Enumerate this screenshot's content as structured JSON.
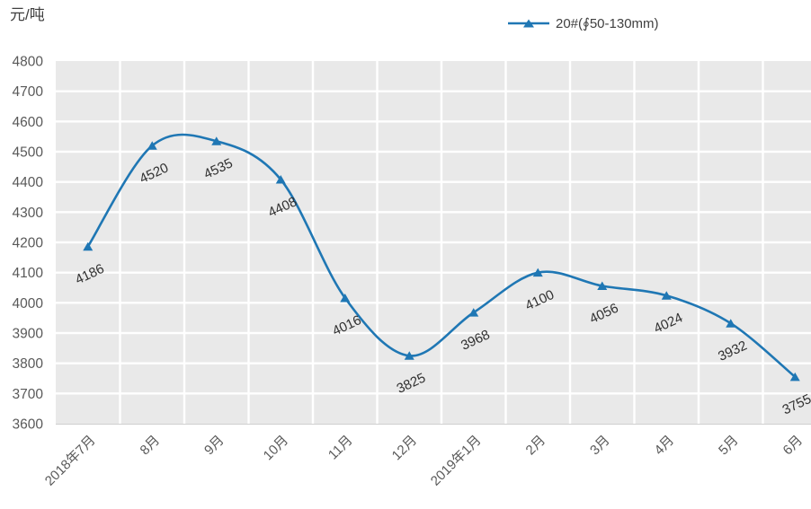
{
  "chart_data": {
    "type": "line",
    "unit_label": "元/吨",
    "categories": [
      "2018年7月",
      "8月",
      "9月",
      "10月",
      "11月",
      "12月",
      "2019年1月",
      "2月",
      "3月",
      "4月",
      "5月",
      "6月"
    ],
    "series": [
      {
        "name": "20#(∮50-130mm)",
        "values": [
          4186,
          4520,
          4535,
          4408,
          4016,
          3825,
          3968,
          4100,
          4056,
          4024,
          3932,
          3755
        ],
        "color": "#1F77B4",
        "marker": "triangle",
        "smooth": true
      }
    ],
    "ylim": [
      3600,
      4800
    ],
    "ytick_step": 100,
    "yticks": [
      3600,
      3700,
      3800,
      3900,
      4000,
      4100,
      4200,
      4300,
      4400,
      4500,
      4600,
      4700,
      4800
    ],
    "grid": true,
    "legend_position": "top-center",
    "plot_bg": "#E9E9E9",
    "gridline_color": "#FFFFFF",
    "axis_label_color": "#595959",
    "data_label_color": "#303030"
  }
}
